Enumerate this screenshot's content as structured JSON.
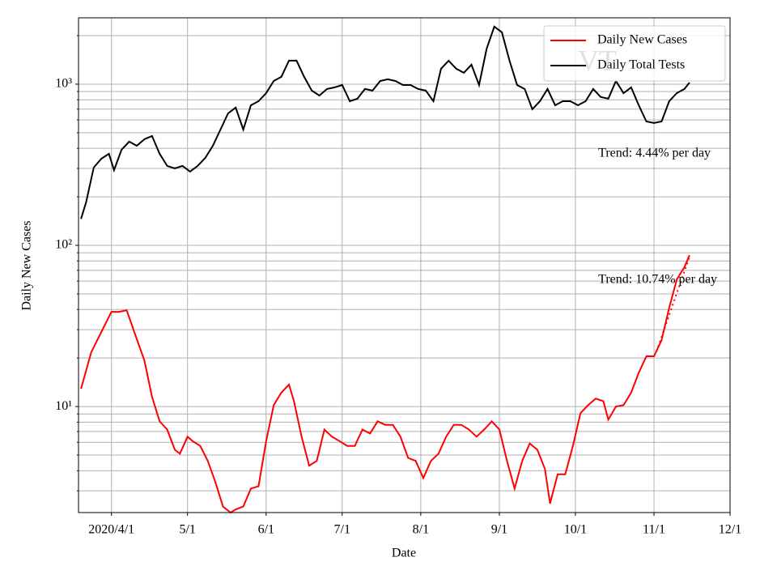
{
  "chart_data": {
    "type": "line",
    "xlabel": "Date",
    "ylabel": "Daily New Cases",
    "log_y": true,
    "grid": true,
    "legend": "upper right",
    "watermark": "VT",
    "xlim": [
      "2020-03-19",
      "2020-12-01"
    ],
    "xticks": [
      {
        "value": "2020-04-01",
        "label": "2020/4/1"
      },
      {
        "value": "2020-05-01",
        "label": "5/1"
      },
      {
        "value": "2020-06-01",
        "label": "6/1"
      },
      {
        "value": "2020-07-01",
        "label": "7/1"
      },
      {
        "value": "2020-08-01",
        "label": "8/1"
      },
      {
        "value": "2020-09-01",
        "label": "9/1"
      },
      {
        "value": "2020-10-01",
        "label": "10/1"
      },
      {
        "value": "2020-11-01",
        "label": "11/1"
      },
      {
        "value": "2020-12-01",
        "label": "12/1"
      }
    ],
    "ylim": [
      2.2,
      2580
    ],
    "yticks": [
      {
        "value": 10,
        "label": "10¹"
      },
      {
        "value": 100,
        "label": "10²"
      },
      {
        "value": 1000,
        "label": "10³"
      }
    ],
    "minor_yticks": [
      3,
      4,
      5,
      6,
      7,
      8,
      9,
      20,
      30,
      40,
      50,
      60,
      70,
      80,
      90,
      200,
      300,
      400,
      500,
      600,
      700,
      800,
      900,
      2000
    ],
    "annotations": [
      {
        "text": "Trend: 4.44% per day",
        "x": "2020-10-10",
        "y": 370
      },
      {
        "text": "Trend: 10.74% per day",
        "x": "2020-10-10",
        "y": 61
      }
    ],
    "series": [
      {
        "name": "Daily New Cases",
        "color": "#ff0000",
        "x": [
          "2020-03-20",
          "2020-03-24",
          "2020-03-28",
          "2020-04-01",
          "2020-04-04",
          "2020-04-07",
          "2020-04-10",
          "2020-04-14",
          "2020-04-17",
          "2020-04-20",
          "2020-04-23",
          "2020-04-26",
          "2020-04-28",
          "2020-05-01",
          "2020-05-03",
          "2020-05-06",
          "2020-05-09",
          "2020-05-12",
          "2020-05-15",
          "2020-05-18",
          "2020-05-20",
          "2020-05-23",
          "2020-05-26",
          "2020-05-29",
          "2020-06-01",
          "2020-06-04",
          "2020-06-07",
          "2020-06-10",
          "2020-06-12",
          "2020-06-15",
          "2020-06-18",
          "2020-06-21",
          "2020-06-24",
          "2020-06-27",
          "2020-06-30",
          "2020-07-03",
          "2020-07-06",
          "2020-07-09",
          "2020-07-12",
          "2020-07-15",
          "2020-07-18",
          "2020-07-21",
          "2020-07-24",
          "2020-07-27",
          "2020-07-30",
          "2020-08-02",
          "2020-08-05",
          "2020-08-08",
          "2020-08-11",
          "2020-08-14",
          "2020-08-17",
          "2020-08-20",
          "2020-08-23",
          "2020-08-26",
          "2020-08-29",
          "2020-09-01",
          "2020-09-04",
          "2020-09-07",
          "2020-09-10",
          "2020-09-13",
          "2020-09-16",
          "2020-09-19",
          "2020-09-21",
          "2020-09-24",
          "2020-09-27",
          "2020-09-30",
          "2020-10-03",
          "2020-10-06",
          "2020-10-09",
          "2020-10-12",
          "2020-10-14",
          "2020-10-17",
          "2020-10-20",
          "2020-10-23",
          "2020-10-26",
          "2020-10-29",
          "2020-11-01",
          "2020-11-04",
          "2020-11-07",
          "2020-11-10",
          "2020-11-13",
          "2020-11-15"
        ],
        "values": [
          12.9,
          21.7,
          29.0,
          38.7,
          38.7,
          39.6,
          29.0,
          19.3,
          11.5,
          8.1,
          7.2,
          5.4,
          5.1,
          6.5,
          6.1,
          5.7,
          4.6,
          3.4,
          2.4,
          2.2,
          2.3,
          2.4,
          3.1,
          3.2,
          6.1,
          10.2,
          12.2,
          13.7,
          10.8,
          6.5,
          4.3,
          4.6,
          7.2,
          6.5,
          6.1,
          5.7,
          5.7,
          7.2,
          6.8,
          8.1,
          7.7,
          7.7,
          6.5,
          4.8,
          4.6,
          3.6,
          4.6,
          5.1,
          6.5,
          7.7,
          7.7,
          7.2,
          6.5,
          7.2,
          8.1,
          7.2,
          4.6,
          3.1,
          4.6,
          5.9,
          5.4,
          4.1,
          2.5,
          3.8,
          3.8,
          5.7,
          9.1,
          10.2,
          11.2,
          10.8,
          8.3,
          10.0,
          10.2,
          12.2,
          16.2,
          20.5,
          20.5,
          25.8,
          41.0,
          61.5,
          73.2,
          87.0
        ]
      },
      {
        "name": "Daily Total Tests",
        "color": "#000000",
        "x": [
          "2020-03-20",
          "2020-03-22",
          "2020-03-25",
          "2020-03-28",
          "2020-03-31",
          "2020-04-02",
          "2020-04-05",
          "2020-04-08",
          "2020-04-11",
          "2020-04-14",
          "2020-04-17",
          "2020-04-20",
          "2020-04-23",
          "2020-04-26",
          "2020-04-29",
          "2020-05-02",
          "2020-05-05",
          "2020-05-08",
          "2020-05-11",
          "2020-05-14",
          "2020-05-17",
          "2020-05-20",
          "2020-05-23",
          "2020-05-26",
          "2020-05-29",
          "2020-06-01",
          "2020-06-04",
          "2020-06-07",
          "2020-06-10",
          "2020-06-13",
          "2020-06-16",
          "2020-06-19",
          "2020-06-22",
          "2020-06-25",
          "2020-06-28",
          "2020-07-01",
          "2020-07-04",
          "2020-07-07",
          "2020-07-10",
          "2020-07-13",
          "2020-07-16",
          "2020-07-19",
          "2020-07-22",
          "2020-07-25",
          "2020-07-28",
          "2020-07-31",
          "2020-08-03",
          "2020-08-06",
          "2020-08-09",
          "2020-08-12",
          "2020-08-15",
          "2020-08-18",
          "2020-08-21",
          "2020-08-24",
          "2020-08-27",
          "2020-08-30",
          "2020-09-02",
          "2020-09-05",
          "2020-09-08",
          "2020-09-11",
          "2020-09-14",
          "2020-09-17",
          "2020-09-20",
          "2020-09-23",
          "2020-09-26",
          "2020-09-29",
          "2020-10-02",
          "2020-10-05",
          "2020-10-08",
          "2020-10-11",
          "2020-10-14",
          "2020-10-17",
          "2020-10-20",
          "2020-10-23",
          "2020-10-26",
          "2020-10-29",
          "2020-11-01",
          "2020-11-04",
          "2020-11-07",
          "2020-11-10",
          "2020-11-13",
          "2020-11-15"
        ],
        "values": [
          146,
          185,
          304,
          345,
          370,
          293,
          392,
          440,
          415,
          455,
          477,
          370,
          311,
          300,
          311,
          287,
          311,
          349,
          415,
          523,
          659,
          715,
          523,
          740,
          784,
          880,
          1047,
          1110,
          1399,
          1399,
          1110,
          912,
          850,
          933,
          955,
          988,
          784,
          812,
          933,
          912,
          1047,
          1072,
          1047,
          988,
          988,
          933,
          912,
          784,
          1246,
          1399,
          1246,
          1176,
          1320,
          988,
          1663,
          2275,
          2097,
          1399,
          988,
          933,
          699,
          784,
          933,
          740,
          784,
          784,
          740,
          784,
          933,
          831,
          812,
          1047,
          880,
          955,
          740,
          587,
          574,
          587,
          784,
          880,
          933,
          1023
        ]
      }
    ],
    "trend_lines": [
      {
        "color": "#ff0000",
        "x": [
          "2020-11-02",
          "2020-11-15"
        ],
        "values": [
          22,
          85
        ]
      }
    ]
  }
}
